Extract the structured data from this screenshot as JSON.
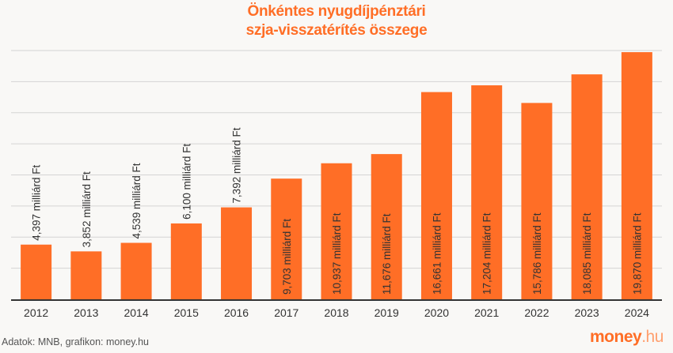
{
  "chart_data": {
    "type": "bar",
    "title": "Önkéntes nyugdíjpénztári szja-visszatérítés összege",
    "categories": [
      "2012",
      "2013",
      "2014",
      "2015",
      "2016",
      "2017",
      "2018",
      "2019",
      "2020",
      "2021",
      "2022",
      "2023",
      "2024"
    ],
    "values": [
      4397,
      3852,
      4539,
      6100,
      7392,
      9703,
      10937,
      11676,
      16661,
      17204,
      15786,
      18085,
      19870
    ],
    "data_labels": [
      "4,397 milliárd Ft",
      "3,852 milliárd Ft",
      "4,539 milliárd Ft",
      "6,100 milliárd Ft",
      "7,392 milliárd Ft",
      "9,703 milliárd Ft",
      "10,937 milliárd Ft",
      "11,676 milliárd Ft",
      "16,661 milliárd Ft",
      "17,204 milliárd Ft",
      "15,786 milliárd Ft",
      "18,085 milliárd Ft",
      "19,870 milliárd Ft"
    ],
    "xlabel": "",
    "ylabel": "",
    "ylim": [
      0,
      20000
    ],
    "grid_step": 2500,
    "grid": true,
    "bar_color": "#ff6e26"
  },
  "title_line1": "Önkéntes nyugdíjpénztári",
  "title_line2": "szja-visszatérítés összege",
  "source": "Adatok: MNB, grafikon: money.hu",
  "logo": {
    "main": "money",
    "suffix": ".hu"
  }
}
